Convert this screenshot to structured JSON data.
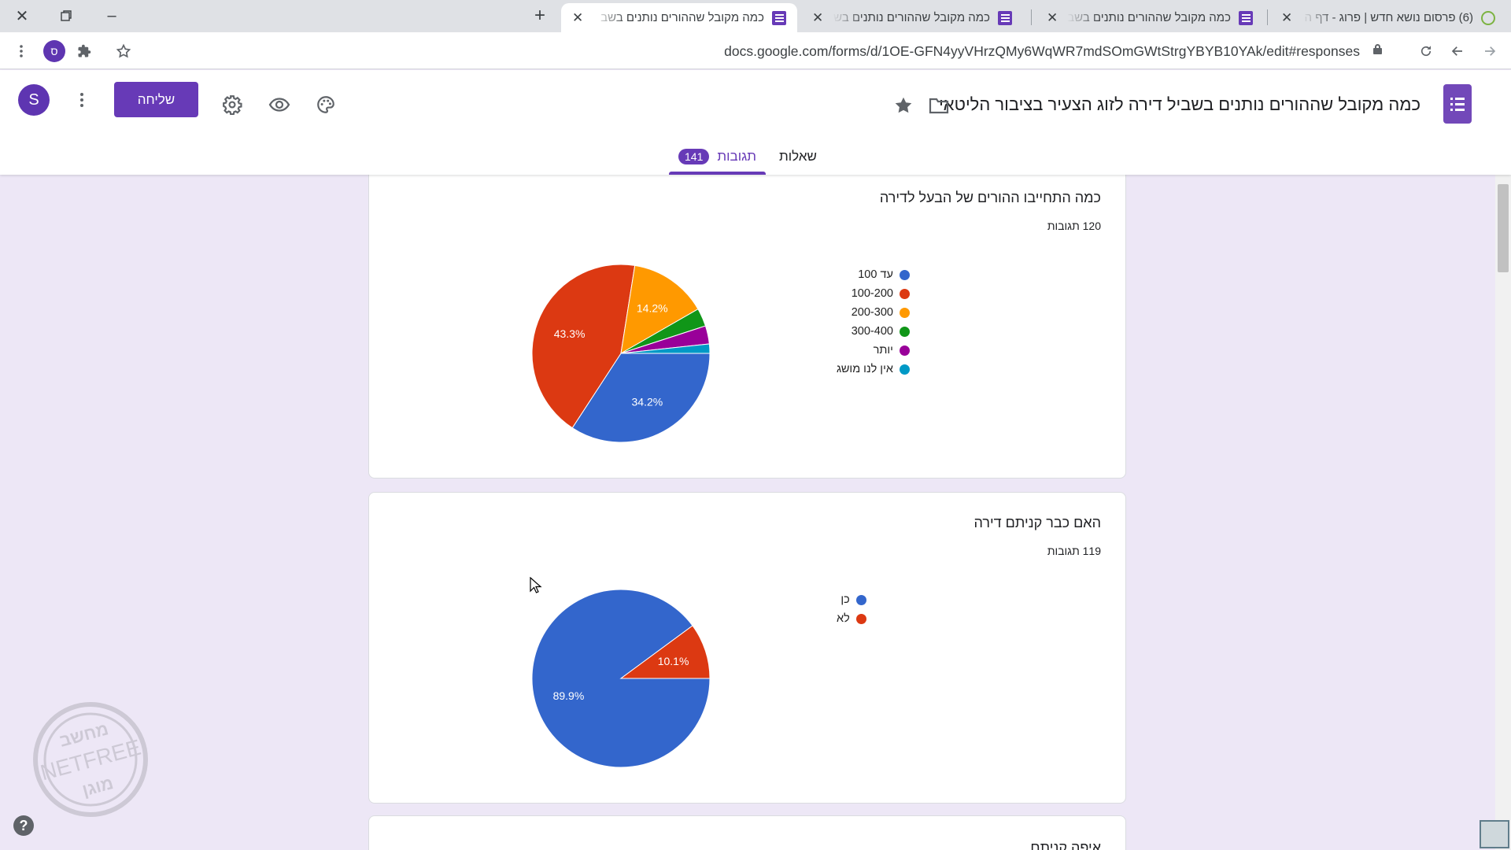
{
  "browser": {
    "tabs": [
      {
        "title": "(6) פרסום נושא חדש | פרוג - דף ה",
        "active": false,
        "favicon": "green-circle-icon"
      },
      {
        "title": "כמה מקובל שההורים נותנים בשב",
        "active": false,
        "favicon": "google-forms-icon"
      },
      {
        "title": "כמה מקובל שההורים נותנים בשב",
        "active": false,
        "favicon": "google-forms-icon"
      },
      {
        "title": "כמה מקובל שההורים נותנים בשב",
        "active": true,
        "favicon": "google-forms-icon"
      }
    ],
    "url": "docs.google.com/forms/d/1OE-GFN4yyVHrzQMy6WqWR7mdSOmGWtStrgYBYB10YAk/edit#responses",
    "profile_initial": "ס"
  },
  "form": {
    "title": "כמה מקובל שההורים נותנים בשביל דירה לזוג הצעיר בציבור הליטאי",
    "send_label": "שליחה",
    "account_initial": "S",
    "tabs": {
      "questions": "שאלות",
      "responses": "תגובות",
      "responses_count": "141"
    }
  },
  "questions": [
    {
      "title": "כמה התחייבו ההורים של הבעל לדירה",
      "count_label": "120 תגובות"
    },
    {
      "title": "האם כבר קניתם דירה",
      "count_label": "119 תגובות"
    },
    {
      "title": "איפה קניתם"
    }
  ],
  "chart_data": [
    {
      "type": "pie",
      "title": "כמה התחייבו ההורים של הבעל לדירה",
      "categories": [
        "עד 100",
        "100-200",
        "200-300",
        "300-400",
        "יותר",
        "אין לנו מושג"
      ],
      "values": [
        34.2,
        43.3,
        14.2,
        3.3,
        3.3,
        1.7
      ],
      "value_labels": [
        "34.2%",
        "43.3%",
        "14.2%",
        "",
        "",
        ""
      ],
      "colors": [
        "#3366cc",
        "#dc3912",
        "#ff9900",
        "#109618",
        "#990099",
        "#0099c6"
      ],
      "legend": "right"
    },
    {
      "type": "pie",
      "title": "האם כבר קניתם דירה",
      "categories": [
        "כן",
        "לא"
      ],
      "values": [
        89.9,
        10.1
      ],
      "value_labels": [
        "89.9%",
        "10.1%"
      ],
      "colors": [
        "#3366cc",
        "#dc3912"
      ],
      "legend": "right"
    }
  ],
  "watermark": {
    "text_top": "מחשב",
    "text_mid": "NETFREE",
    "text_bottom": "מוגן"
  }
}
